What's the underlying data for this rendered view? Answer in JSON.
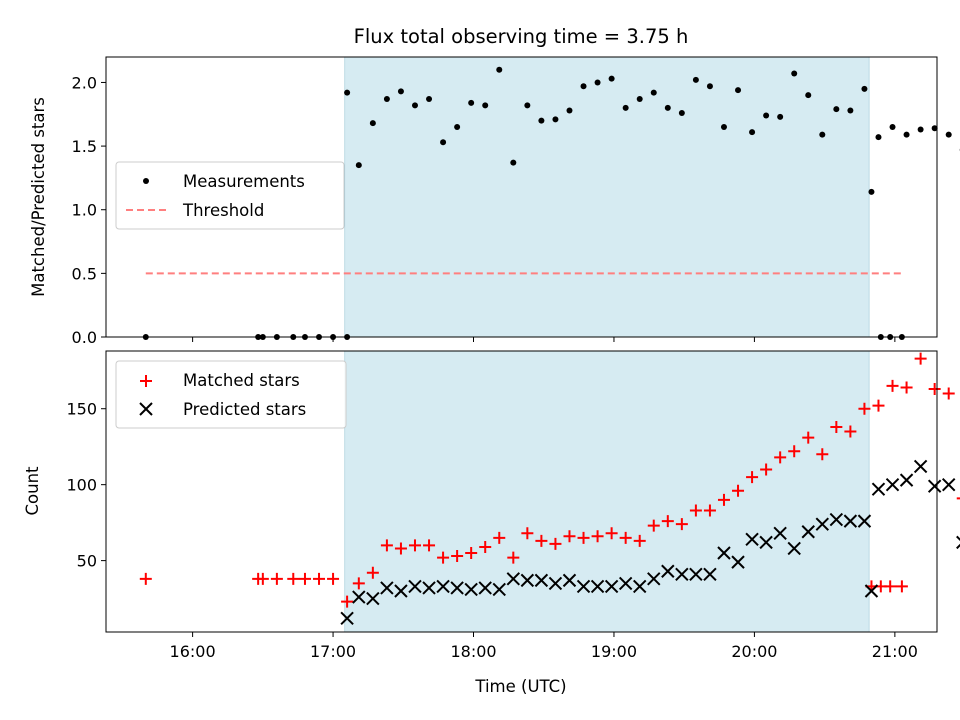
{
  "title": "Flux total observing time = 3.75 h",
  "chart_data": [
    {
      "type": "scatter",
      "panel": "top",
      "ylabel": "Matched/Predicted stars",
      "ylim": [
        0,
        2.2
      ],
      "yticks": [
        "0.0",
        "0.5",
        "1.0",
        "1.5",
        "2.0"
      ],
      "xlim": [
        "15:23",
        "21:18"
      ],
      "observing_window": [
        "17:05",
        "20:49"
      ],
      "legend_position": "center-left",
      "series": [
        {
          "name": "Measurements",
          "marker": "dot",
          "color": "#000000",
          "points": [
            [
              "15:40",
              0
            ],
            [
              "16:28",
              0
            ],
            [
              "16:30",
              0
            ],
            [
              "16:36",
              0
            ],
            [
              "16:43",
              0
            ],
            [
              "16:48",
              0
            ],
            [
              "16:54",
              0
            ],
            [
              "17:00",
              0
            ],
            [
              "17:06",
              0
            ],
            [
              "17:06",
              1.92
            ],
            [
              "17:11",
              1.35
            ],
            [
              "17:17",
              1.68
            ],
            [
              "17:23",
              1.87
            ],
            [
              "17:29",
              1.93
            ],
            [
              "17:35",
              1.82
            ],
            [
              "17:41",
              1.87
            ],
            [
              "17:47",
              1.53
            ],
            [
              "17:53",
              1.65
            ],
            [
              "17:59",
              1.84
            ],
            [
              "18:05",
              1.82
            ],
            [
              "18:11",
              2.1
            ],
            [
              "18:17",
              1.37
            ],
            [
              "18:23",
              1.82
            ],
            [
              "18:29",
              1.7
            ],
            [
              "18:35",
              1.71
            ],
            [
              "18:41",
              1.78
            ],
            [
              "18:47",
              1.97
            ],
            [
              "18:53",
              2.0
            ],
            [
              "18:59",
              2.03
            ],
            [
              "19:05",
              1.8
            ],
            [
              "19:11",
              1.87
            ],
            [
              "19:17",
              1.92
            ],
            [
              "19:23",
              1.8
            ],
            [
              "19:29",
              1.76
            ],
            [
              "19:35",
              2.02
            ],
            [
              "19:41",
              1.97
            ],
            [
              "19:47",
              1.65
            ],
            [
              "19:53",
              1.94
            ],
            [
              "19:59",
              1.61
            ],
            [
              "20:05",
              1.74
            ],
            [
              "20:11",
              1.73
            ],
            [
              "20:17",
              2.07
            ],
            [
              "20:23",
              1.9
            ],
            [
              "20:29",
              1.59
            ],
            [
              "20:35",
              1.79
            ],
            [
              "20:41",
              1.78
            ],
            [
              "20:47",
              1.95
            ],
            [
              "20:53",
              1.57
            ],
            [
              "20:59",
              1.65
            ],
            [
              "21:05",
              1.59
            ],
            [
              "21:11",
              1.63
            ],
            [
              "21:17",
              1.64
            ],
            [
              "21:23",
              1.59
            ],
            [
              "21:29",
              1.47
            ],
            [
              "20:50",
              1.14
            ],
            [
              "20:54",
              0
            ],
            [
              "20:58",
              0
            ],
            [
              "21:03",
              0
            ]
          ]
        },
        {
          "name": "Threshold",
          "marker": "dashed-line",
          "color": "#ff7f7f",
          "points": [
            [
              "15:40",
              0.5
            ],
            [
              "21:03",
              0.5
            ]
          ]
        }
      ]
    },
    {
      "type": "scatter",
      "panel": "bottom",
      "xlabel": "Time (UTC)",
      "ylabel": "Count",
      "ylim": [
        3,
        188
      ],
      "yticks": [
        "50",
        "100",
        "150"
      ],
      "xticks": [
        "16:00",
        "17:00",
        "18:00",
        "19:00",
        "20:00",
        "21:00"
      ],
      "xlim": [
        "15:23",
        "21:18"
      ],
      "observing_window": [
        "17:05",
        "20:49"
      ],
      "legend_position": "top-left",
      "series": [
        {
          "name": "Matched stars",
          "marker": "plus",
          "color": "#ff0000",
          "points": [
            [
              "15:40",
              38
            ],
            [
              "16:28",
              38
            ],
            [
              "16:30",
              38
            ],
            [
              "16:36",
              38
            ],
            [
              "16:43",
              38
            ],
            [
              "16:48",
              38
            ],
            [
              "16:54",
              38
            ],
            [
              "17:00",
              38
            ],
            [
              "17:06",
              23
            ],
            [
              "17:11",
              35
            ],
            [
              "17:17",
              42
            ],
            [
              "17:23",
              60
            ],
            [
              "17:29",
              58
            ],
            [
              "17:35",
              60
            ],
            [
              "17:41",
              60
            ],
            [
              "17:47",
              52
            ],
            [
              "17:53",
              53
            ],
            [
              "17:59",
              55
            ],
            [
              "18:05",
              59
            ],
            [
              "18:11",
              65
            ],
            [
              "18:17",
              52
            ],
            [
              "18:23",
              68
            ],
            [
              "18:29",
              63
            ],
            [
              "18:35",
              61
            ],
            [
              "18:41",
              66
            ],
            [
              "18:47",
              65
            ],
            [
              "18:53",
              66
            ],
            [
              "18:59",
              68
            ],
            [
              "19:05",
              65
            ],
            [
              "19:11",
              63
            ],
            [
              "19:17",
              73
            ],
            [
              "19:23",
              76
            ],
            [
              "19:29",
              74
            ],
            [
              "19:35",
              83
            ],
            [
              "19:41",
              83
            ],
            [
              "19:47",
              90
            ],
            [
              "19:53",
              96
            ],
            [
              "19:59",
              105
            ],
            [
              "20:05",
              110
            ],
            [
              "20:11",
              118
            ],
            [
              "20:17",
              122
            ],
            [
              "20:23",
              131
            ],
            [
              "20:29",
              120
            ],
            [
              "20:35",
              138
            ],
            [
              "20:41",
              135
            ],
            [
              "20:47",
              150
            ],
            [
              "20:53",
              152
            ],
            [
              "20:59",
              165
            ],
            [
              "21:05",
              164
            ],
            [
              "21:11",
              183
            ],
            [
              "21:17",
              163
            ],
            [
              "21:23",
              160
            ],
            [
              "21:29",
              91
            ],
            [
              "20:50",
              33
            ],
            [
              "20:54",
              33
            ],
            [
              "20:58",
              33
            ],
            [
              "21:03",
              33
            ]
          ]
        },
        {
          "name": "Predicted stars",
          "marker": "cross",
          "color": "#000000",
          "points": [
            [
              "17:06",
              12
            ],
            [
              "17:11",
              26
            ],
            [
              "17:17",
              25
            ],
            [
              "17:23",
              32
            ],
            [
              "17:29",
              30
            ],
            [
              "17:35",
              33
            ],
            [
              "17:41",
              32
            ],
            [
              "17:47",
              33
            ],
            [
              "17:53",
              32
            ],
            [
              "17:59",
              31
            ],
            [
              "18:05",
              32
            ],
            [
              "18:11",
              31
            ],
            [
              "18:17",
              38
            ],
            [
              "18:23",
              37
            ],
            [
              "18:29",
              37
            ],
            [
              "18:35",
              35
            ],
            [
              "18:41",
              37
            ],
            [
              "18:47",
              33
            ],
            [
              "18:53",
              33
            ],
            [
              "18:59",
              33
            ],
            [
              "19:05",
              35
            ],
            [
              "19:11",
              33
            ],
            [
              "19:17",
              38
            ],
            [
              "19:23",
              43
            ],
            [
              "19:29",
              41
            ],
            [
              "19:35",
              41
            ],
            [
              "19:41",
              41
            ],
            [
              "19:47",
              55
            ],
            [
              "19:53",
              49
            ],
            [
              "19:59",
              64
            ],
            [
              "20:05",
              62
            ],
            [
              "20:11",
              68
            ],
            [
              "20:17",
              58
            ],
            [
              "20:23",
              69
            ],
            [
              "20:29",
              74
            ],
            [
              "20:35",
              77
            ],
            [
              "20:41",
              76
            ],
            [
              "20:47",
              76
            ],
            [
              "20:53",
              97
            ],
            [
              "20:59",
              100
            ],
            [
              "21:05",
              103
            ],
            [
              "21:11",
              112
            ],
            [
              "21:17",
              99
            ],
            [
              "21:23",
              100
            ],
            [
              "21:29",
              62
            ],
            [
              "20:50",
              30
            ]
          ]
        }
      ]
    }
  ]
}
